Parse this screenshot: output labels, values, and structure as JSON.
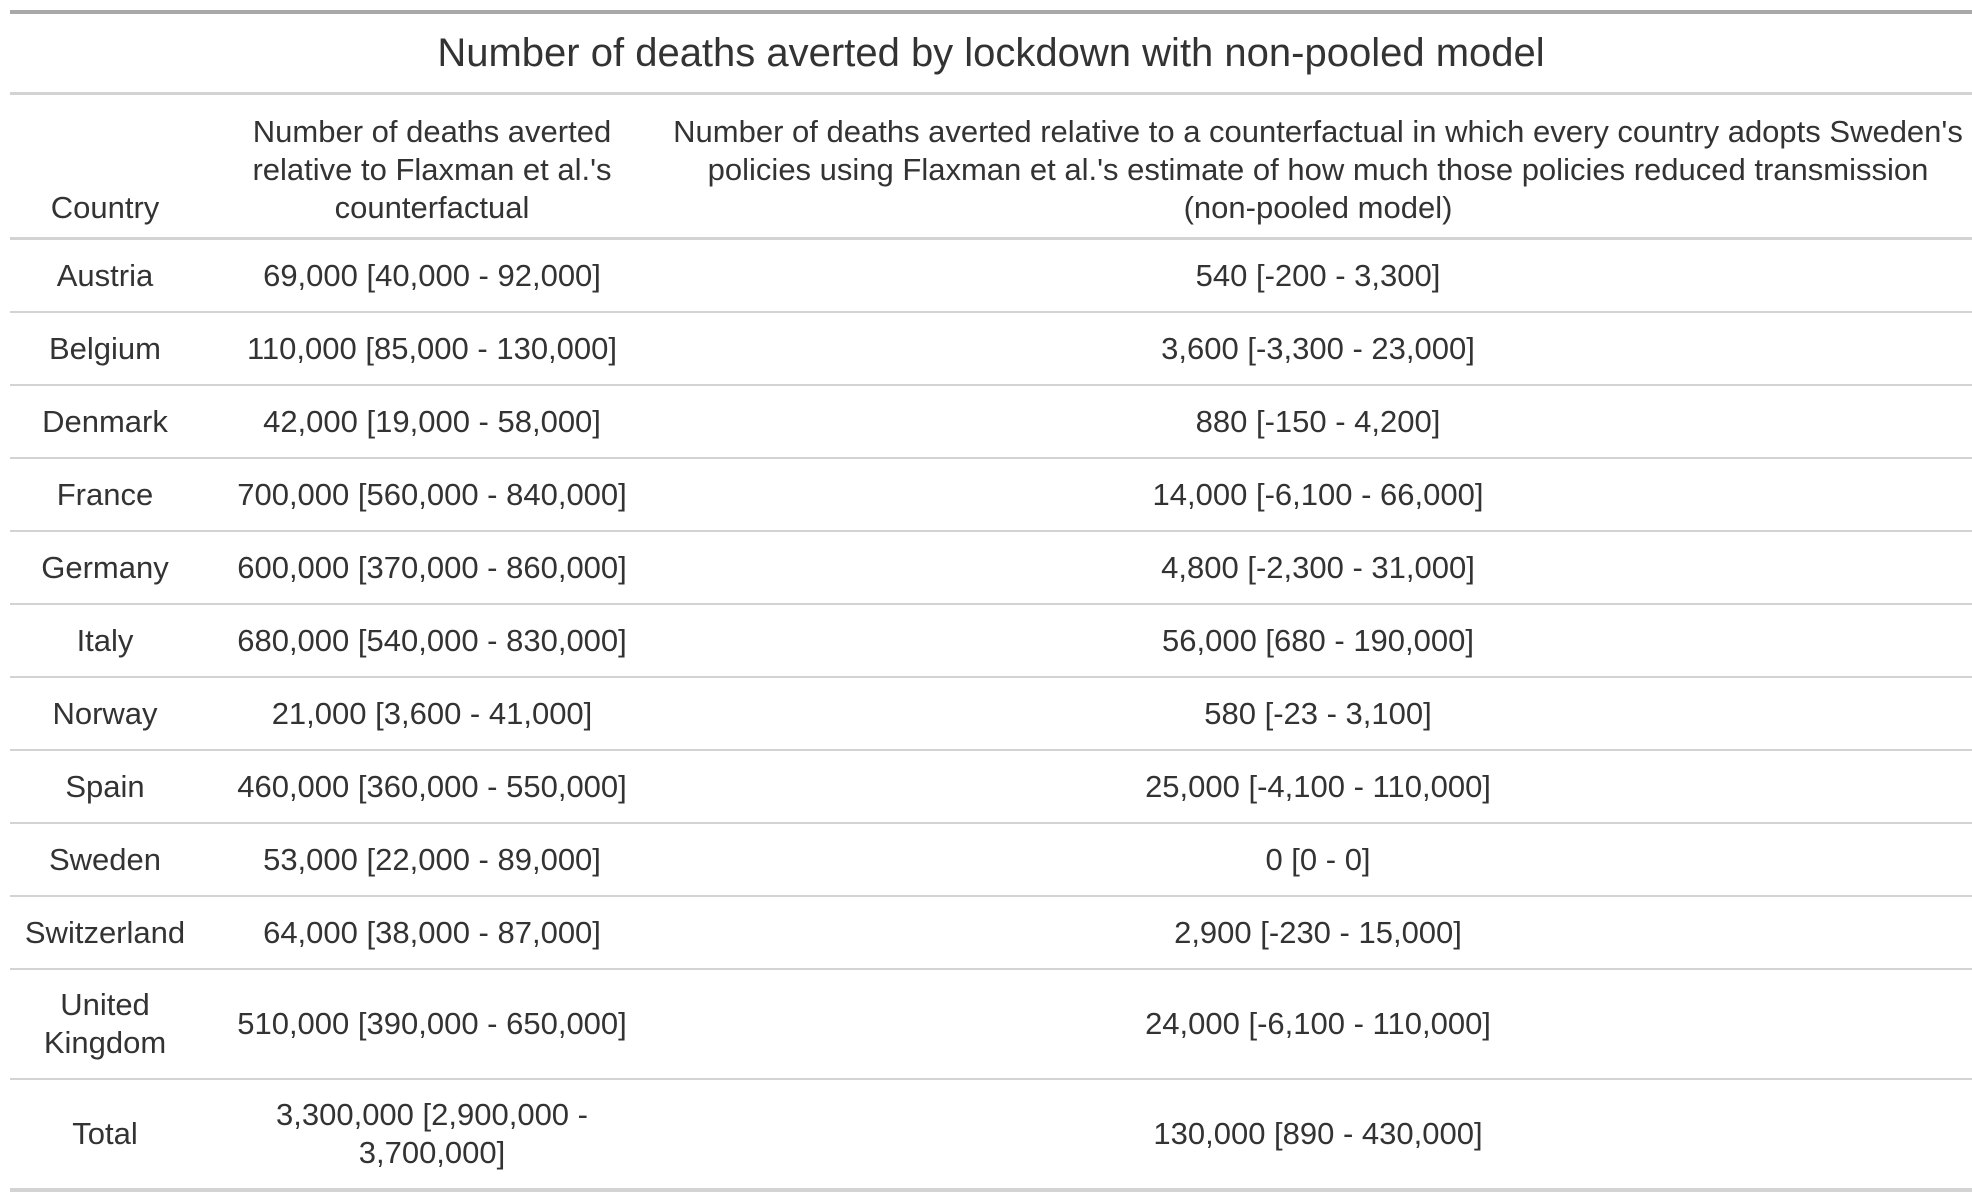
{
  "title": "Number of deaths averted by lockdown with non-pooled model",
  "columns": [
    "Country",
    "Number of deaths averted relative to Flaxman et al.'s counterfactual",
    "Number of deaths averted relative to a counterfactual in which every country adopts Sweden's policies using Flaxman et al.'s estimate of how much those policies reduced transmission (non-pooled model)"
  ],
  "rows": [
    {
      "country": "Austria",
      "flaxman": "69,000 [40,000 - 92,000]",
      "sweden": "540 [-200 - 3,300]"
    },
    {
      "country": "Belgium",
      "flaxman": "110,000 [85,000 - 130,000]",
      "sweden": "3,600 [-3,300 - 23,000]"
    },
    {
      "country": "Denmark",
      "flaxman": "42,000 [19,000 - 58,000]",
      "sweden": "880 [-150 - 4,200]"
    },
    {
      "country": "France",
      "flaxman": "700,000 [560,000 - 840,000]",
      "sweden": "14,000 [-6,100 - 66,000]"
    },
    {
      "country": "Germany",
      "flaxman": "600,000 [370,000 - 860,000]",
      "sweden": "4,800 [-2,300 - 31,000]"
    },
    {
      "country": "Italy",
      "flaxman": "680,000 [540,000 - 830,000]",
      "sweden": "56,000 [680 - 190,000]"
    },
    {
      "country": "Norway",
      "flaxman": "21,000 [3,600 - 41,000]",
      "sweden": "580 [-23 - 3,100]"
    },
    {
      "country": "Spain",
      "flaxman": "460,000 [360,000 - 550,000]",
      "sweden": "25,000 [-4,100 - 110,000]"
    },
    {
      "country": "Sweden",
      "flaxman": "53,000 [22,000 - 89,000]",
      "sweden": "0 [0 - 0]"
    },
    {
      "country": "Switzerland",
      "flaxman": "64,000 [38,000 - 87,000]",
      "sweden": "2,900 [-230 - 15,000]"
    },
    {
      "country": "United Kingdom",
      "flaxman": "510,000 [390,000 - 650,000]",
      "sweden": "24,000 [-6,100 - 110,000]"
    },
    {
      "country": "Total",
      "flaxman": "3,300,000 [2,900,000 - 3,700,000]",
      "sweden": "130,000 [890 - 430,000]"
    }
  ]
}
